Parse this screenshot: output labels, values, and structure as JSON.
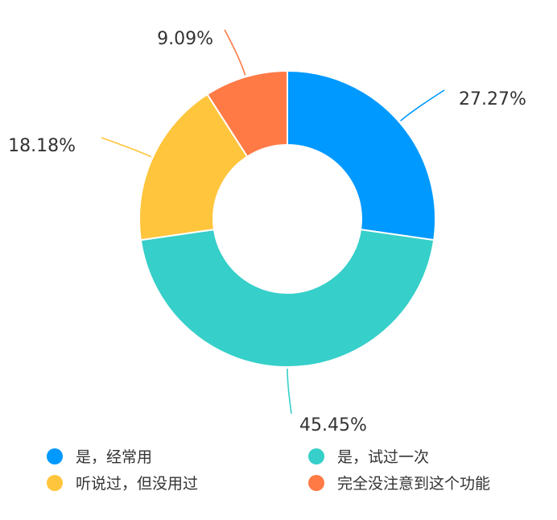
{
  "chart_data": {
    "type": "pie",
    "donut": true,
    "title": "",
    "slices": [
      {
        "label": "是，经常用",
        "value": 27.27,
        "value_label": "27.27%",
        "color": "#0099FF"
      },
      {
        "label": "是，试过一次",
        "value": 45.45,
        "value_label": "45.45%",
        "color": "#36CFC9"
      },
      {
        "label": "听说过，但没用过",
        "value": 18.18,
        "value_label": "18.18%",
        "color": "#FFC53D"
      },
      {
        "label": "完全没注意到这个功能",
        "value": 9.09,
        "value_label": "9.09%",
        "color": "#FF7A45"
      }
    ],
    "legend_position": "bottom"
  }
}
